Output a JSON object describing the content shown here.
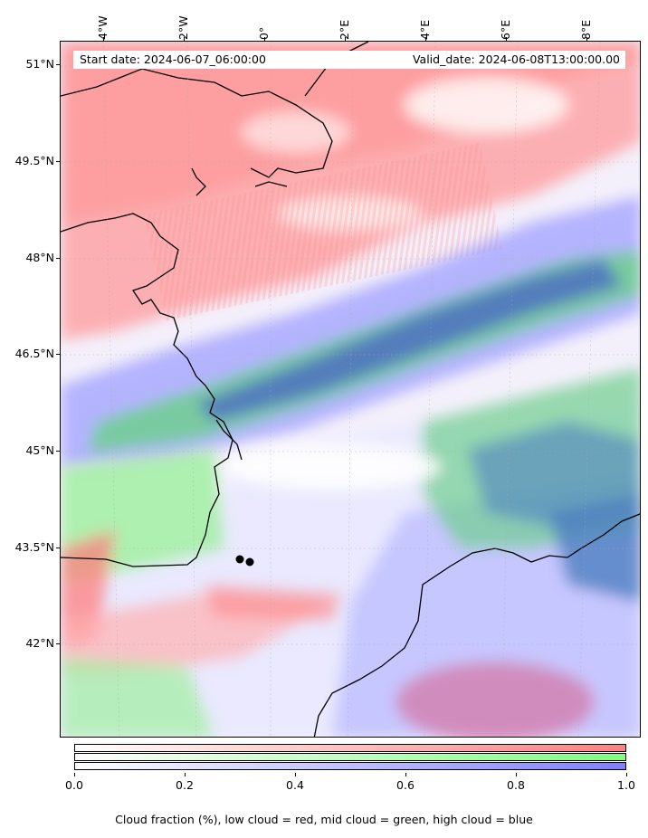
{
  "map": {
    "start_date": "Start date: 2024-06-07_06:00:00",
    "valid_date": "Valid_date: 2024-06-08T13:00:00.00",
    "lon_ticks": [
      "4°W",
      "2°W",
      "0°",
      "2°E",
      "4°E",
      "6°E",
      "8°E"
    ],
    "lat_ticks": [
      "51°N",
      "49.5°N",
      "48°N",
      "46.5°N",
      "45°N",
      "43.5°N",
      "42°N"
    ],
    "marker_icons": [
      "location-dot-icon",
      "location-dot-icon"
    ],
    "layer_colors": {
      "low": "#ff7f7f",
      "mid": "#7fff7f",
      "high": "#7f7fff"
    }
  },
  "colorbar": {
    "ticks": [
      "0.0",
      "0.2",
      "0.4",
      "0.6",
      "0.8",
      "1.0"
    ],
    "label": "Cloud fraction (%), low cloud = red, mid cloud = green, high cloud = blue",
    "range": [
      0.0,
      1.0
    ]
  }
}
